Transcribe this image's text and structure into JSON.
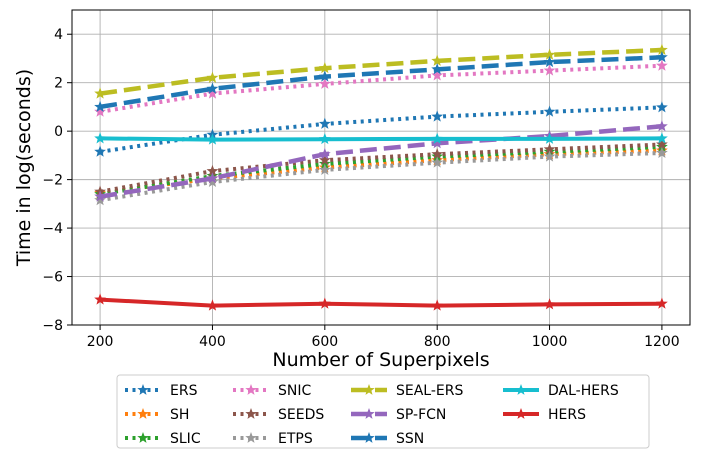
{
  "chart_data": {
    "type": "line",
    "title": "",
    "xlabel": "Number of Superpixels",
    "ylabel": "Time in log(seconds)",
    "x": [
      200,
      400,
      600,
      800,
      1000,
      1200
    ],
    "xlim": [
      150,
      1250
    ],
    "ylim": [
      -8,
      5
    ],
    "xticks": [
      200,
      400,
      600,
      800,
      1000,
      1200
    ],
    "yticks": [
      -8,
      -6,
      -4,
      -2,
      0,
      2,
      4
    ],
    "grid": true,
    "legend_position": "below",
    "series": [
      {
        "name": "ERS",
        "color": "#1f77b4",
        "style": "dotted",
        "values": [
          -0.85,
          -0.15,
          0.3,
          0.6,
          0.8,
          0.98
        ]
      },
      {
        "name": "SH",
        "color": "#ff7f0e",
        "style": "dotted",
        "values": [
          -2.55,
          -1.95,
          -1.5,
          -1.2,
          -0.95,
          -0.8
        ]
      },
      {
        "name": "SLIC",
        "color": "#2ca02c",
        "style": "dotted",
        "values": [
          -2.6,
          -1.85,
          -1.35,
          -1.05,
          -0.85,
          -0.65
        ]
      },
      {
        "name": "SNIC",
        "color": "#e377c2",
        "style": "dotted",
        "values": [
          0.8,
          1.55,
          1.95,
          2.3,
          2.5,
          2.7
        ]
      },
      {
        "name": "SEEDS",
        "color": "#8c564b",
        "style": "dotted",
        "values": [
          -2.5,
          -1.65,
          -1.2,
          -0.95,
          -0.75,
          -0.55
        ]
      },
      {
        "name": "ETPS",
        "color": "#999999",
        "style": "dotted",
        "values": [
          -2.85,
          -2.1,
          -1.6,
          -1.3,
          -1.05,
          -0.9
        ]
      },
      {
        "name": "SEAL-ERS",
        "color": "#bcbd22",
        "style": "dashed",
        "values": [
          1.55,
          2.2,
          2.6,
          2.9,
          3.15,
          3.35
        ]
      },
      {
        "name": "SP-FCN",
        "color": "#9467bd",
        "style": "dashed",
        "values": [
          -2.7,
          -1.95,
          -0.95,
          -0.5,
          -0.2,
          0.2
        ]
      },
      {
        "name": "SSN",
        "color": "#1f77b4",
        "style": "dashed",
        "values": [
          1.0,
          1.75,
          2.25,
          2.55,
          2.85,
          3.05
        ]
      },
      {
        "name": "DAL-HERS",
        "color": "#17becf",
        "style": "solid",
        "values": [
          -0.3,
          -0.35,
          -0.33,
          -0.32,
          -0.32,
          -0.3
        ]
      },
      {
        "name": "HERS",
        "color": "#d62728",
        "style": "solid",
        "values": [
          -6.95,
          -7.2,
          -7.12,
          -7.2,
          -7.15,
          -7.12
        ]
      }
    ]
  }
}
